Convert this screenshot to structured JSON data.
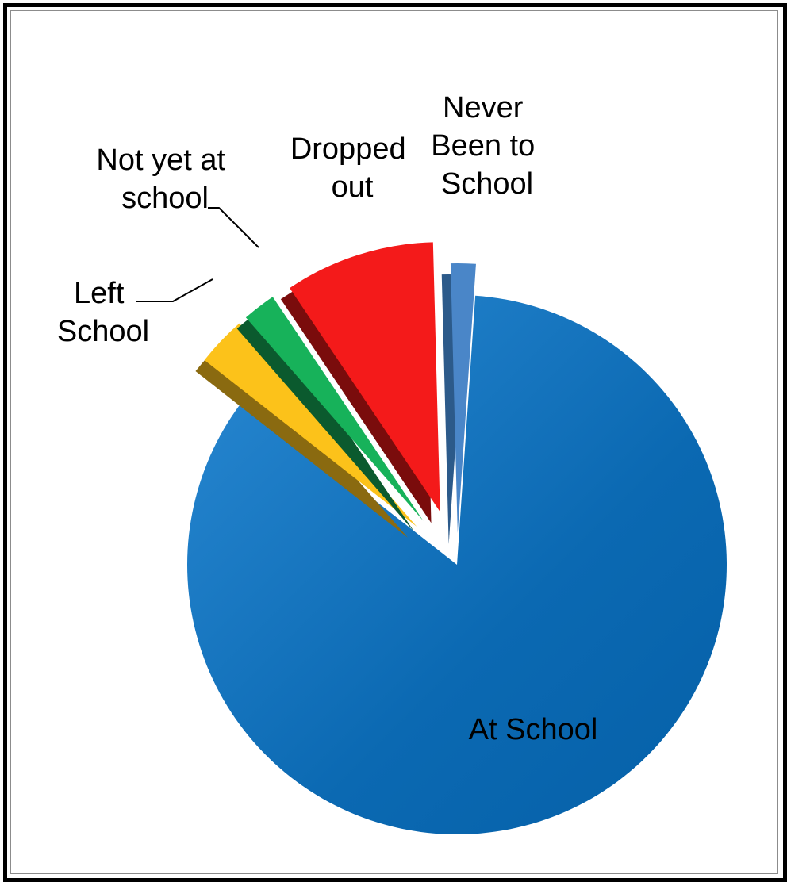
{
  "chart_data": {
    "type": "pie",
    "style": "3d-exploded",
    "title": "",
    "slices": [
      {
        "label": "At School",
        "value": 84.5,
        "color": "#0a6ab4",
        "side_color": "#064a80",
        "explode": 0
      },
      {
        "label": "Left School",
        "value": 3.0,
        "color": "#fcc21a",
        "side_color": "#8a6a10",
        "explode": 70
      },
      {
        "label": "Not yet at school",
        "value": 2.0,
        "color": "#17b25a",
        "side_color": "#0b5a2e",
        "explode": 70
      },
      {
        "label": "Dropped out",
        "value": 9.0,
        "color": "#f41a1a",
        "side_color": "#7a0c0c",
        "explode": 70
      },
      {
        "label": "Never Been to School",
        "value": 1.5,
        "color": "#4a86c8",
        "side_color": "#2c5a8a",
        "explode": 40
      }
    ],
    "legend": "none"
  },
  "labels": {
    "at_school": [
      "At School"
    ],
    "left_school": [
      "Left",
      "School"
    ],
    "not_yet": [
      "Not yet at",
      "school"
    ],
    "dropped_out": [
      "Dropped",
      "out"
    ],
    "never_been": [
      "Never",
      "Been to",
      "School"
    ]
  }
}
